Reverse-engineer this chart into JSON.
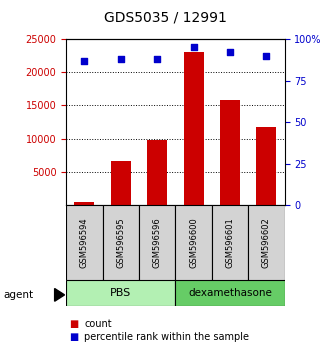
{
  "title": "GDS5035 / 12991",
  "samples": [
    "GSM596594",
    "GSM596595",
    "GSM596596",
    "GSM596600",
    "GSM596601",
    "GSM596602"
  ],
  "counts": [
    500,
    6700,
    9800,
    23000,
    15800,
    11800
  ],
  "percentile_ranks": [
    87,
    88,
    88,
    95,
    92,
    90
  ],
  "groups": [
    "PBS",
    "PBS",
    "PBS",
    "dexamethasone",
    "dexamethasone",
    "dexamethasone"
  ],
  "group_colors": {
    "PBS": "#b3f0b3",
    "dexamethasone": "#66cc66"
  },
  "bar_color": "#cc0000",
  "dot_color": "#0000cc",
  "left_ylim": [
    0,
    25000
  ],
  "right_ylim": [
    0,
    100
  ],
  "left_yticks": [
    5000,
    10000,
    15000,
    20000,
    25000
  ],
  "right_yticks": [
    0,
    25,
    50,
    75,
    100
  ],
  "right_yticklabels": [
    "0",
    "25",
    "50",
    "75",
    "100%"
  ],
  "xlabel_color": "#cc0000",
  "right_axis_color": "#0000cc",
  "background_color": "#ffffff",
  "legend_count_color": "#cc0000",
  "legend_pct_color": "#0000cc"
}
